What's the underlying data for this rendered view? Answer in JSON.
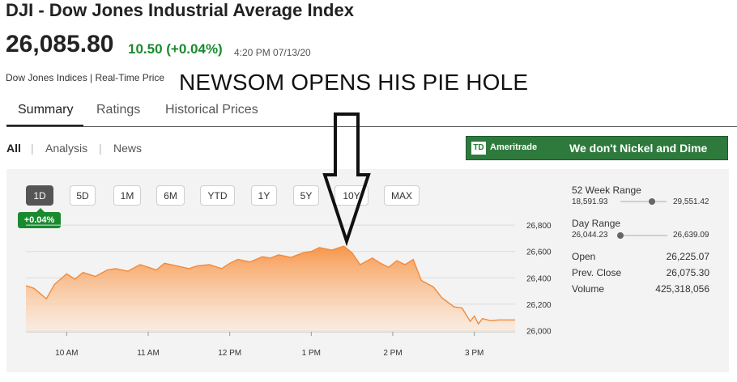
{
  "header": {
    "title": "DJI - Dow Jones Industrial Average Index",
    "price": "26,085.80",
    "change": "10.50 (+0.04%)",
    "timestamp": "4:20 PM 07/13/20",
    "source": "Dow Jones Indices | Real-Time Price"
  },
  "overlay_caption": "NEWSOM OPENS HIS PIE HOLE",
  "tabs": [
    {
      "label": "Summary",
      "active": true
    },
    {
      "label": "Ratings",
      "active": false
    },
    {
      "label": "Historical Prices",
      "active": false
    }
  ],
  "subnav": {
    "items": [
      "All",
      "Analysis",
      "News"
    ],
    "separator": "|"
  },
  "ad": {
    "logo": "TD",
    "brand": "Ameritrade",
    "slogan": "We don't Nickel and Dime",
    "color": "#2e7a3c"
  },
  "range_buttons": [
    {
      "label": "1D",
      "active": true
    },
    {
      "label": "5D",
      "active": false
    },
    {
      "label": "1M",
      "active": false
    },
    {
      "label": "6M",
      "active": false
    },
    {
      "label": "YTD",
      "active": false
    },
    {
      "label": "1Y",
      "active": false
    },
    {
      "label": "5Y",
      "active": false
    },
    {
      "label": "10Y",
      "active": false
    },
    {
      "label": "MAX",
      "active": false
    }
  ],
  "change_badge": "+0.04%",
  "stats": {
    "week52": {
      "label": "52 Week Range",
      "low": "18,591.93",
      "high": "29,551.42",
      "position": 0.68
    },
    "day": {
      "label": "Day Range",
      "low": "26,044.23",
      "high": "26,639.09",
      "position": 0.07
    },
    "open": {
      "label": "Open",
      "value": "26,225.07"
    },
    "prev_close": {
      "label": "Prev. Close",
      "value": "26,075.30"
    },
    "volume": {
      "label": "Volume",
      "value": "425,318,056"
    }
  },
  "colors": {
    "accent_green": "#1a8a2f",
    "chart_fill_top": "#f7964a",
    "chart_line": "#f38a3a"
  },
  "icons": {
    "overlay_arrow": "down-arrow-icon"
  },
  "chart_data": {
    "type": "area",
    "y_ticks": [
      "26,800",
      "26,600",
      "26,400",
      "26,200",
      "26,000"
    ],
    "y_tick_values": [
      26800,
      26600,
      26400,
      26200,
      26000
    ],
    "x_ticks": [
      "10 AM",
      "11 AM",
      "12 PM",
      "1 PM",
      "2 PM",
      "3 PM"
    ],
    "x_tick_values": [
      10,
      11,
      12,
      13,
      14,
      15
    ],
    "xlim": [
      9.5,
      15.5
    ],
    "ylim": [
      25990,
      26850
    ],
    "x": [
      9.5,
      9.6,
      9.75,
      9.85,
      10.0,
      10.1,
      10.2,
      10.35,
      10.5,
      10.6,
      10.75,
      10.9,
      11.0,
      11.1,
      11.2,
      11.35,
      11.5,
      11.6,
      11.75,
      11.9,
      12.0,
      12.1,
      12.25,
      12.4,
      12.5,
      12.6,
      12.75,
      12.9,
      13.0,
      13.1,
      13.25,
      13.4,
      13.5,
      13.6,
      13.75,
      13.85,
      13.95,
      14.05,
      14.15,
      14.25,
      14.35,
      14.5,
      14.6,
      14.75,
      14.85,
      14.95,
      15.0,
      15.05,
      15.1,
      15.2,
      15.3,
      15.5
    ],
    "y": [
      26340,
      26320,
      26240,
      26350,
      26430,
      26390,
      26440,
      26410,
      26460,
      26470,
      26450,
      26500,
      26480,
      26460,
      26510,
      26490,
      26470,
      26490,
      26500,
      26470,
      26510,
      26540,
      26520,
      26560,
      26550,
      26575,
      26555,
      26590,
      26600,
      26630,
      26610,
      26640,
      26590,
      26500,
      26550,
      26510,
      26480,
      26530,
      26500,
      26540,
      26380,
      26330,
      26250,
      26180,
      26170,
      26070,
      26110,
      26050,
      26090,
      26075,
      26080,
      26080
    ]
  }
}
